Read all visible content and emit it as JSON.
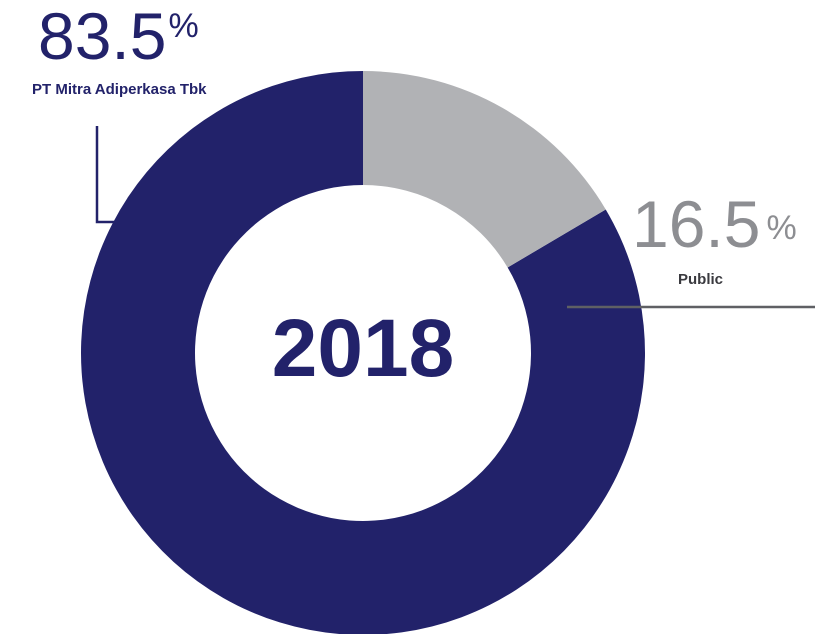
{
  "chart_data": {
    "type": "pie",
    "center_label": "2018",
    "percent_sign": "%",
    "slices": [
      {
        "label": "PT Mitra Adiperkasa Tbk",
        "value": 83.5,
        "display": "83.5",
        "color": "#22226a"
      },
      {
        "label": "Public",
        "value": 16.5,
        "display": "16.5",
        "color": "#b1b2b5"
      }
    ]
  }
}
